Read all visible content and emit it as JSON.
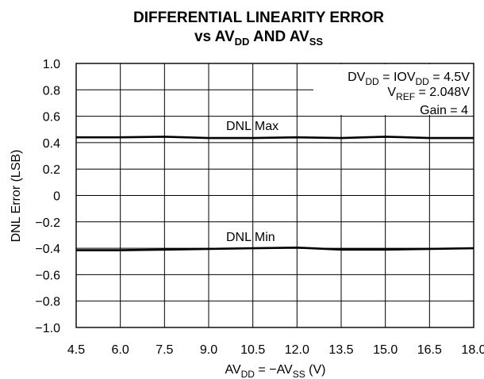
{
  "chart_data": {
    "type": "line",
    "title": {
      "line1": "DIFFERENTIAL LINEARITY ERROR",
      "line2_prefix": "vs AV",
      "line2_sub1": "DD",
      "line2_mid": " AND AV",
      "line2_sub2": "SS"
    },
    "xlabel": {
      "main": "AV",
      "sub1": "DD",
      "mid": " = −AV",
      "sub2": "SS",
      "unit": " (V)"
    },
    "ylabel": "DNL Error (LSB)",
    "xlim": [
      4.5,
      18.0
    ],
    "ylim": [
      -1.0,
      1.0
    ],
    "x_ticks": [
      "4.5",
      "6.0",
      "7.5",
      "9.0",
      "10.5",
      "12.0",
      "13.5",
      "15.0",
      "16.5",
      "18.0"
    ],
    "y_ticks": [
      "1.0",
      "0.8",
      "0.6",
      "0.4",
      "0.2",
      "0",
      "−0.2",
      "−0.4",
      "−0.6",
      "−0.8",
      "−1.0"
    ],
    "y_tick_values": [
      1.0,
      0.8,
      0.6,
      0.4,
      0.2,
      0,
      -0.2,
      -0.4,
      -0.6,
      -0.8,
      -1.0
    ],
    "x_tick_values": [
      4.5,
      6.0,
      7.5,
      9.0,
      10.5,
      12.0,
      13.5,
      15.0,
      16.5,
      18.0
    ],
    "grid": true,
    "series": [
      {
        "name": "DNL Max",
        "x": [
          4.5,
          6.0,
          7.5,
          9.0,
          10.5,
          12.0,
          13.5,
          15.0,
          16.5,
          18.0
        ],
        "values": [
          0.44,
          0.44,
          0.445,
          0.435,
          0.435,
          0.44,
          0.435,
          0.445,
          0.435,
          0.435
        ]
      },
      {
        "name": "DNL Min",
        "x": [
          4.5,
          6.0,
          7.5,
          9.0,
          10.5,
          12.0,
          13.5,
          15.0,
          16.5,
          18.0
        ],
        "values": [
          -0.415,
          -0.415,
          -0.41,
          -0.405,
          -0.4,
          -0.395,
          -0.41,
          -0.41,
          -0.405,
          -0.4
        ]
      }
    ],
    "annotations": {
      "line1": {
        "a": "DV",
        "a_sub": "DD",
        "b": " = IOV",
        "b_sub": "DD",
        "c": " = 4.5V"
      },
      "line2": {
        "a": "V",
        "a_sub": "REF",
        "b": " = 2.048V"
      },
      "line3": "Gain = 4"
    }
  }
}
